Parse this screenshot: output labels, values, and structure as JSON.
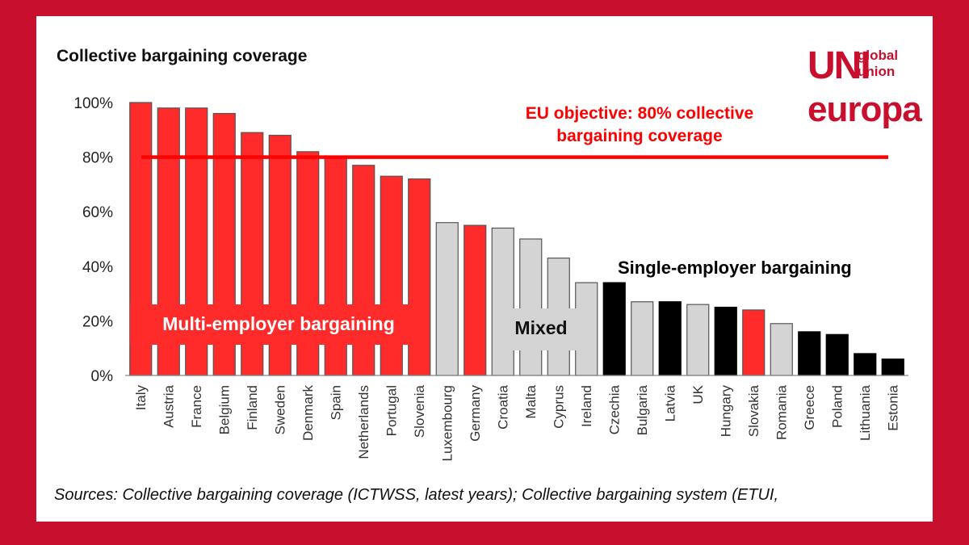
{
  "chart_data": {
    "type": "bar",
    "title": "Collective bargaining coverage",
    "categories": [
      "Italy",
      "Austria",
      "France",
      "Belgium",
      "Finland",
      "Sweden",
      "Denmark",
      "Spain",
      "Netherlands",
      "Portugal",
      "Slovenia",
      "Luxembourg",
      "Germany",
      "Croatia",
      "Malta",
      "Cyprus",
      "Ireland",
      "Czechia",
      "Bulgaria",
      "Latvia",
      "UK",
      "Hungary",
      "Slovakia",
      "Romania",
      "Greece",
      "Poland",
      "Lithuania",
      "Estonia"
    ],
    "values": [
      100,
      98,
      98,
      96,
      89,
      88,
      82,
      80,
      77,
      73,
      72,
      56,
      55,
      54,
      50,
      43,
      34,
      34,
      27,
      27,
      26,
      25,
      24,
      19,
      16,
      15,
      8,
      6
    ],
    "system": [
      "multi",
      "multi",
      "multi",
      "multi",
      "multi",
      "multi",
      "multi",
      "multi",
      "multi",
      "multi",
      "multi",
      "mixed",
      "multi",
      "mixed",
      "mixed",
      "mixed",
      "mixed",
      "single",
      "mixed",
      "single",
      "mixed",
      "single",
      "multi",
      "mixed",
      "single",
      "single",
      "single",
      "single"
    ],
    "colors": {
      "multi": "#ff2a2a",
      "mixed": "#d4d4d4",
      "single": "#000000",
      "bar_border": "#555555",
      "objective_line": "#ff0000"
    },
    "ylim": [
      0,
      100
    ],
    "yticks": [
      "0%",
      "20%",
      "40%",
      "60%",
      "80%",
      "100%"
    ],
    "ytick_values": [
      0,
      20,
      40,
      60,
      80,
      100
    ],
    "objective": {
      "value": 80,
      "label_line1": "EU objective: 80% collective",
      "label_line2": "bargaining coverage"
    },
    "group_labels": {
      "multi": "Multi-employer bargaining",
      "mixed": "Mixed",
      "single": "Single-employer bargaining"
    },
    "xlabel": "",
    "ylabel": ""
  },
  "source": "Sources: Collective bargaining coverage (ICTWSS, latest years); Collective bargaining system (ETUI,",
  "logo": {
    "mark": "UNI",
    "line1": "global",
    "line2": "union",
    "line3": "europa"
  }
}
